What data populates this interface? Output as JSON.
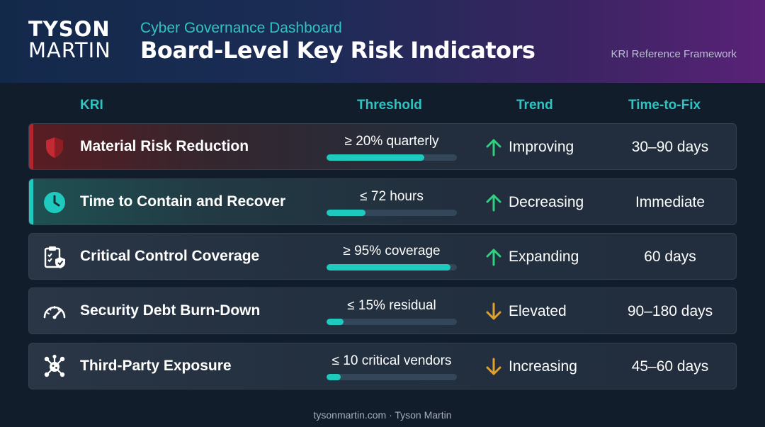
{
  "header": {
    "logo_top": "TYSON",
    "logo_bottom": "MARTIN",
    "subtitle": "Cyber Governance Dashboard",
    "title": "Board-Level Key Risk Indicators",
    "framework": "KRI Reference Framework"
  },
  "columns": {
    "kri": "KRI",
    "threshold": "Threshold",
    "trend": "Trend",
    "time_to_fix": "Time-to-Fix"
  },
  "colors": {
    "accent_teal": "#1ec9bd",
    "accent_red": "#b3262f",
    "trend_up": "#2fd07f",
    "trend_down": "#e0a12f"
  },
  "rows": [
    {
      "icon": "shield-icon",
      "name": "Material Risk Reduction",
      "threshold": "≥ 20% quarterly",
      "progress": 0.75,
      "trend_direction": "up",
      "trend": "Improving",
      "time_to_fix": "30–90 days"
    },
    {
      "icon": "clock-icon",
      "name": "Time to Contain and Recover",
      "threshold": "≤ 72 hours",
      "progress": 0.3,
      "trend_direction": "up",
      "trend": "Decreasing",
      "time_to_fix": "Immediate"
    },
    {
      "icon": "clipboard-check-icon",
      "name": "Critical Control Coverage",
      "threshold": "≥ 95% coverage",
      "progress": 0.95,
      "trend_direction": "up",
      "trend": "Expanding",
      "time_to_fix": "60 days"
    },
    {
      "icon": "gauge-icon",
      "name": "Security Debt Burn-Down",
      "threshold": "≤ 15% residual",
      "progress": 0.13,
      "trend_direction": "down",
      "trend": "Elevated",
      "time_to_fix": "90–180 days"
    },
    {
      "icon": "network-icon",
      "name": "Third-Party Exposure",
      "threshold": "≤ 10 critical vendors",
      "progress": 0.11,
      "trend_direction": "down",
      "trend": "Increasing",
      "time_to_fix": "45–60 days"
    }
  ],
  "footer": "tysonmartin.com · Tyson Martin"
}
